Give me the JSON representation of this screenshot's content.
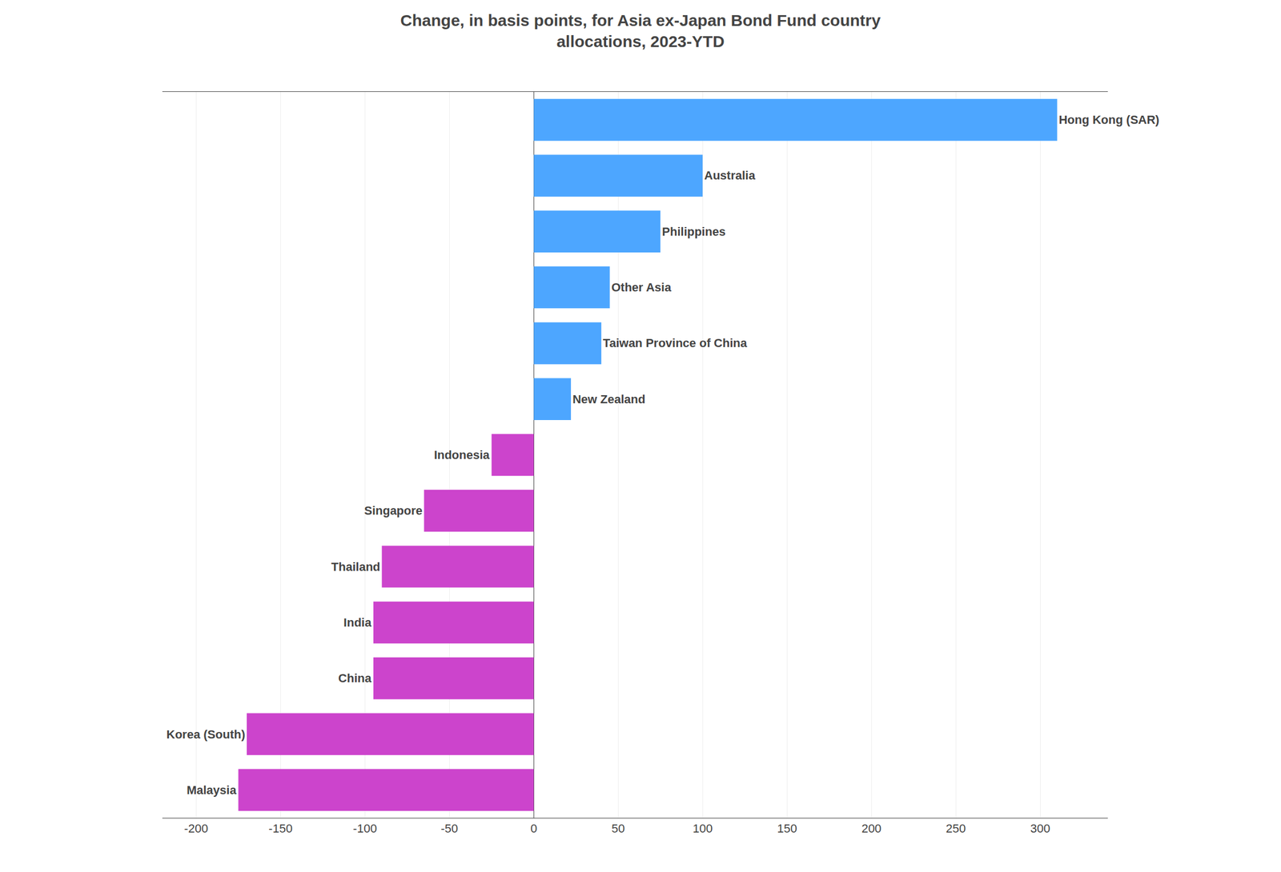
{
  "chart_data": {
    "type": "bar",
    "orientation": "horizontal",
    "title": "Change, in basis points, for Asia ex-Japan Bond Fund country\nallocations, 2023-YTD",
    "categories": [
      "Hong Kong (SAR)",
      "Australia",
      "Philippines",
      "Other Asia",
      "Taiwan Province of China",
      "New Zealand",
      "Indonesia",
      "Singapore",
      "Thailand",
      "India",
      "China",
      "Korea (South)",
      "Malaysia"
    ],
    "values": [
      310,
      100,
      75,
      45,
      40,
      22,
      -25,
      -65,
      -90,
      -95,
      -95,
      -170,
      -175
    ],
    "colors": [
      "#4da6ff",
      "#4da6ff",
      "#4da6ff",
      "#4da6ff",
      "#4da6ff",
      "#4da6ff",
      "#cc44cc",
      "#cc44cc",
      "#cc44cc",
      "#cc44cc",
      "#cc44cc",
      "#cc44cc",
      "#cc44cc"
    ],
    "xlim": [
      -220,
      340
    ],
    "xticks": [
      -200,
      -150,
      -100,
      -50,
      0,
      50,
      100,
      150,
      200,
      250,
      300
    ],
    "grid": true,
    "tick_labels": "x"
  }
}
